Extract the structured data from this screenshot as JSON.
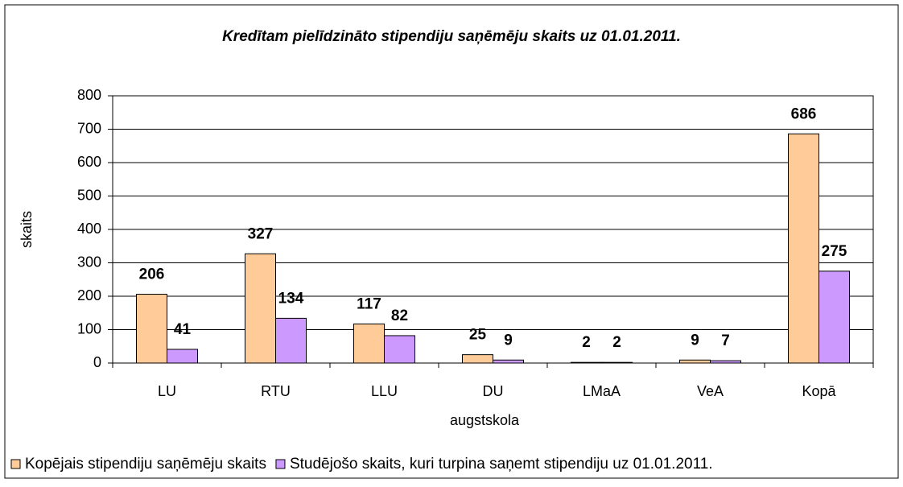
{
  "chart_data": {
    "type": "bar",
    "title": "Kredītam pielīdzināto stipendiju saņēmēju skaits uz 01.01.2011.",
    "xlabel": "augstskola",
    "ylabel": "skaits",
    "categories": [
      "LU",
      "RTU",
      "LLU",
      "DU",
      "LMaA",
      "VeA",
      "Kopā"
    ],
    "series": [
      {
        "name": "Kopējais stipendiju saņēmēju skaits",
        "color": "#FFCC99",
        "values": [
          206,
          327,
          117,
          25,
          2,
          9,
          686
        ]
      },
      {
        "name": "Studējošo skaits, kuri turpina saņemt stipendiju uz 01.01.2011.",
        "color": "#CC99FF",
        "values": [
          41,
          134,
          82,
          9,
          2,
          7,
          275
        ]
      }
    ],
    "ylim": [
      0,
      800
    ],
    "yticks": [
      0,
      100,
      200,
      300,
      400,
      500,
      600,
      700,
      800
    ],
    "grid": true,
    "legend": "bottom"
  }
}
